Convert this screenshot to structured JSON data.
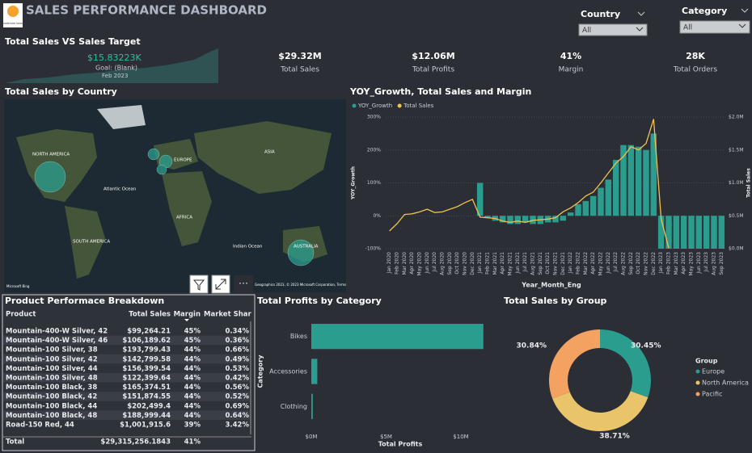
{
  "header": {
    "title": "SALES PERFORMANCE DASHBOARD",
    "logo": "ADVENTURE WORKS"
  },
  "slicers": [
    {
      "label": "Country",
      "value": "All"
    },
    {
      "label": "Category",
      "value": "All"
    }
  ],
  "target_card": {
    "title": "Total Sales VS Sales Target",
    "value": "$15.83223K",
    "goal": "Goal: (Blank)",
    "period": "Feb 2023"
  },
  "kpis": [
    {
      "value": "$29.32M",
      "label": "Total Sales"
    },
    {
      "value": "$12.06M",
      "label": "Total Profits"
    },
    {
      "value": "41%",
      "label": "Margin"
    },
    {
      "value": "28K",
      "label": "Total Orders"
    }
  ],
  "map": {
    "title": "Total Sales by Country",
    "labels": [
      "NORTH AMERICA",
      "ASIA",
      "EUROPE",
      "Atlantic Ocean",
      "AFRICA",
      "SOUTH AMERICA",
      "Indian Ocean",
      "AUSTRALIA"
    ],
    "credit": "Microsoft Bing",
    "copyright": "Geographics 2023, © 2023 Microsoft Corporation, Terms"
  },
  "combo_chart": {
    "type": "bar-line",
    "title": "YOY_Growth, Total Sales and Margin",
    "x_label": "Year_Month_Eng",
    "y_label": "YOY_Growth",
    "y2_label": "Total Sales",
    "categories": [
      "Jan 2020",
      "Feb 2020",
      "Mar 2020",
      "Apr 2020",
      "May 2020",
      "Jun 2020",
      "Jul 2020",
      "Aug 2020",
      "Sep 2020",
      "Oct 2020",
      "Nov 2020",
      "Dec 2020",
      "Jan 2021",
      "Feb 2021",
      "Mar 2021",
      "Apr 2021",
      "May 2021",
      "Jun 2021",
      "Jul 2021",
      "Aug 2021",
      "Sep 2021",
      "Oct 2021",
      "Nov 2021",
      "Dec 2021",
      "Jan 2022",
      "Feb 2022",
      "Mar 2022",
      "Apr 2022",
      "May 2022",
      "Jun 2022",
      "Jul 2022",
      "Aug 2022",
      "Sep 2022",
      "Oct 2022",
      "Nov 2022",
      "Dec 2022",
      "Jan 2023",
      "Feb 2023",
      "Mar 2023",
      "Apr 2023",
      "May 2023",
      "Jun 2023",
      "Jul 2023",
      "Aug 2023",
      "Sep 2023"
    ],
    "series": [
      {
        "name": "YOY_Growth",
        "color": "#2a9d8f",
        "values": [
          null,
          null,
          null,
          null,
          null,
          null,
          null,
          null,
          null,
          null,
          null,
          null,
          100,
          -5,
          -15,
          -20,
          -25,
          -25,
          -20,
          -25,
          -25,
          -20,
          -20,
          -15,
          10,
          35,
          45,
          60,
          85,
          110,
          170,
          215,
          215,
          210,
          200,
          250,
          -100,
          -100,
          -100,
          -100,
          -100,
          -100,
          -100,
          -100,
          -100
        ]
      },
      {
        "name": "Total Sales",
        "color": "#f2c14e",
        "axis": "y2",
        "values": [
          270000,
          380000,
          520000,
          530000,
          560000,
          600000,
          550000,
          560000,
          600000,
          640000,
          700000,
          750000,
          480000,
          470000,
          460000,
          420000,
          400000,
          420000,
          400000,
          430000,
          440000,
          450000,
          470000,
          560000,
          620000,
          700000,
          800000,
          860000,
          1000000,
          1150000,
          1300000,
          1400000,
          1550000,
          1500000,
          1600000,
          1970000,
          450000,
          10000,
          null,
          null,
          null,
          null,
          null,
          null,
          null
        ]
      }
    ],
    "ylim": [
      -100,
      300
    ],
    "yticks": [
      {
        "value": -100,
        "label": "-100%"
      },
      {
        "value": 0,
        "label": "0%"
      },
      {
        "value": 100,
        "label": "100%"
      },
      {
        "value": 200,
        "label": "200%"
      },
      {
        "value": 300,
        "label": "300%"
      }
    ],
    "y2lim": [
      0,
      2000000
    ],
    "y2ticks": [
      {
        "value": 0,
        "label": "$0.0M"
      },
      {
        "value": 500000,
        "label": "$0.5M"
      },
      {
        "value": 1000000,
        "label": "$1.0M"
      },
      {
        "value": 1500000,
        "label": "$1.5M"
      },
      {
        "value": 2000000,
        "label": "$2.0M"
      }
    ]
  },
  "table": {
    "title": "Product Performace Breakdown",
    "columns": [
      "Product",
      "Total Sales",
      "Margin",
      "Market Share"
    ],
    "rows": [
      [
        "Mountain-400-W Silver, 42",
        "$99,264.21",
        "45%",
        "0.34%"
      ],
      [
        "Mountain-400-W Silver, 46",
        "$106,189.62",
        "45%",
        "0.36%"
      ],
      [
        "Mountain-100 Silver, 38",
        "$193,799.43",
        "44%",
        "0.66%"
      ],
      [
        "Mountain-100 Silver, 42",
        "$142,799.58",
        "44%",
        "0.49%"
      ],
      [
        "Mountain-100 Silver, 44",
        "$156,399.54",
        "44%",
        "0.53%"
      ],
      [
        "Mountain-100 Silver, 48",
        "$122,399.64",
        "44%",
        "0.42%"
      ],
      [
        "Mountain-100 Black, 38",
        "$165,374.51",
        "44%",
        "0.56%"
      ],
      [
        "Mountain-100 Black, 42",
        "$151,874.55",
        "44%",
        "0.52%"
      ],
      [
        "Mountain-100 Black, 44",
        "$202,499.4",
        "44%",
        "0.69%"
      ],
      [
        "Mountain-100 Black, 48",
        "$188,999.44",
        "44%",
        "0.64%"
      ],
      [
        "Road-150 Red, 44",
        "$1,001,915.6",
        "39%",
        "3.42%"
      ]
    ],
    "total": [
      "Total",
      "$29,315,256.1843",
      "41%",
      ""
    ]
  },
  "bar_chart": {
    "type": "hbar",
    "title": "Total Profits by Category",
    "x_label": "Total Profits",
    "y_label": "Category",
    "categories": [
      "Bikes",
      "Accessories",
      "Clothing"
    ],
    "values": [
      11500000,
      400000,
      100000
    ],
    "color": "#2a9d8f",
    "xlim": [
      0,
      12000000
    ],
    "xticks": [
      {
        "value": 0,
        "label": "$0M"
      },
      {
        "value": 5000000,
        "label": "$5M"
      },
      {
        "value": 10000000,
        "label": "$10M"
      }
    ]
  },
  "donut_chart": {
    "type": "donut",
    "title": "Total Sales by Group",
    "legend_title": "Group",
    "categories": [
      "Europe",
      "North America",
      "Pacific"
    ],
    "values": [
      30.45,
      38.71,
      30.84
    ],
    "value_labels": [
      "30.45%",
      "38.71%",
      "30.84%"
    ],
    "colors": [
      "#2a9d8f",
      "#e9c46a",
      "#f4a261"
    ]
  }
}
